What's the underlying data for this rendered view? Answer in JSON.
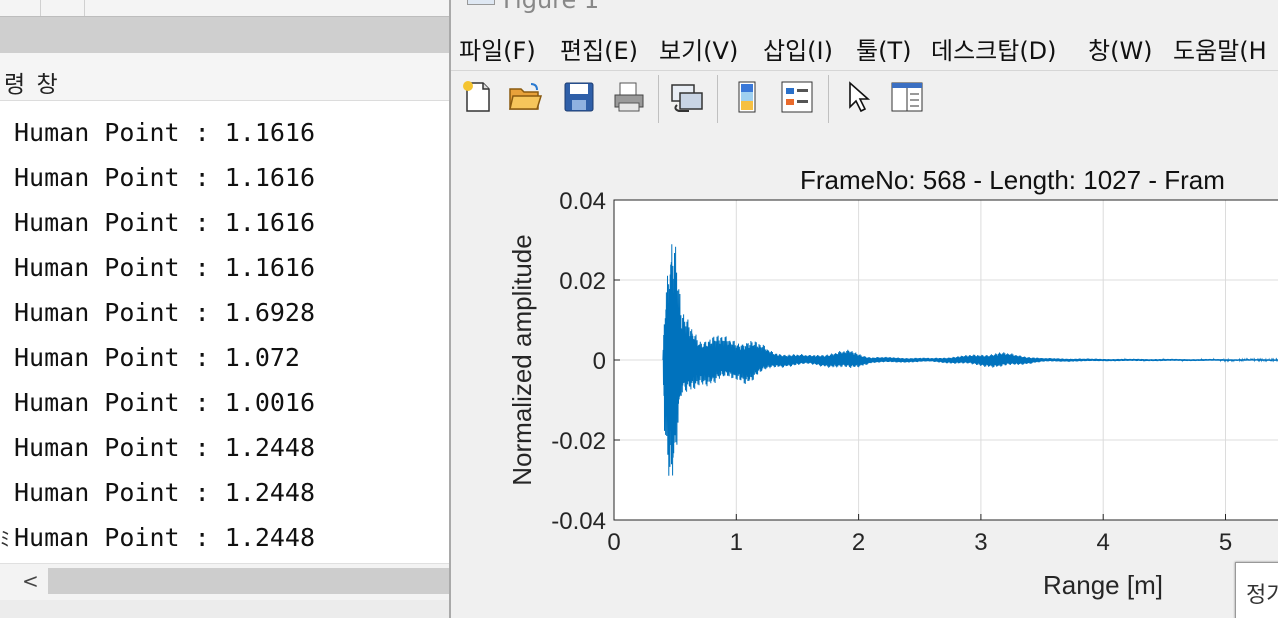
{
  "command_window": {
    "title": "령 창",
    "lines": [
      "Human Point : 1.1616",
      "Human Point : 1.1616",
      "Human Point : 1.1616",
      "Human Point : 1.1616",
      "Human Point : 1.6928",
      "Human Point : 1.072",
      "Human Point : 1.0016",
      "Human Point : 1.2448",
      "Human Point : 1.2448",
      "Human Point : 1.2448"
    ],
    "prompt_marker": "ﾐ",
    "scroll_left_arrow": "<"
  },
  "figure_window": {
    "title": "Figure 1",
    "menu": [
      {
        "label": "파일(F)"
      },
      {
        "label": "편집(E)"
      },
      {
        "label": "보기(V)"
      },
      {
        "label": "삽입(I)"
      },
      {
        "label": "툴(T)"
      },
      {
        "label": "데스크탑(D)"
      },
      {
        "label": "창(W)"
      },
      {
        "label": "도움말(H"
      }
    ],
    "toolbar_icons": [
      "new-figure-icon",
      "open-file-icon",
      "save-icon",
      "print-icon",
      "link-icon",
      "colorbar-icon",
      "legend-icon",
      "pointer-icon",
      "property-editor-icon"
    ],
    "tooltip_text": "정가"
  },
  "chart_data": {
    "type": "line",
    "title": "FrameNo: 568 - Length: 1027 - Fram",
    "xlabel": "Range [m]",
    "ylabel": "Normalized amplitude",
    "xlim": [
      0,
      5.5
    ],
    "ylim": [
      -0.04,
      0.04
    ],
    "xticks": [
      0,
      1,
      2,
      3,
      4,
      5
    ],
    "yticks": [
      0.04,
      0.02,
      0,
      -0.02,
      -0.04
    ],
    "ytick_labels": [
      "0.04",
      "0.02",
      "0",
      "-0.02",
      "-0.04"
    ],
    "grid": true,
    "color": "#0072BD",
    "series": [
      {
        "envelope": [
          {
            "x": 0.4,
            "amp": 0.0
          },
          {
            "x": 0.41,
            "amp": 0.016
          },
          {
            "x": 0.43,
            "amp": 0.024
          },
          {
            "x": 0.47,
            "amp": 0.034
          },
          {
            "x": 0.5,
            "amp": 0.03
          },
          {
            "x": 0.55,
            "amp": 0.012
          },
          {
            "x": 0.7,
            "amp": 0.006
          },
          {
            "x": 0.8,
            "amp": 0.0065
          },
          {
            "x": 1.0,
            "amp": 0.005
          },
          {
            "x": 1.1,
            "amp": 0.006
          },
          {
            "x": 1.3,
            "amp": 0.002
          },
          {
            "x": 1.6,
            "amp": 0.0012
          },
          {
            "x": 1.93,
            "amp": 0.0025
          },
          {
            "x": 2.1,
            "amp": 0.0008
          },
          {
            "x": 2.6,
            "amp": 0.0005
          },
          {
            "x": 2.9,
            "amp": 0.0012
          },
          {
            "x": 3.15,
            "amp": 0.002
          },
          {
            "x": 3.5,
            "amp": 0.0005
          },
          {
            "x": 4.0,
            "amp": 0.0003
          },
          {
            "x": 5.5,
            "amp": 0.0002
          }
        ]
      }
    ]
  }
}
